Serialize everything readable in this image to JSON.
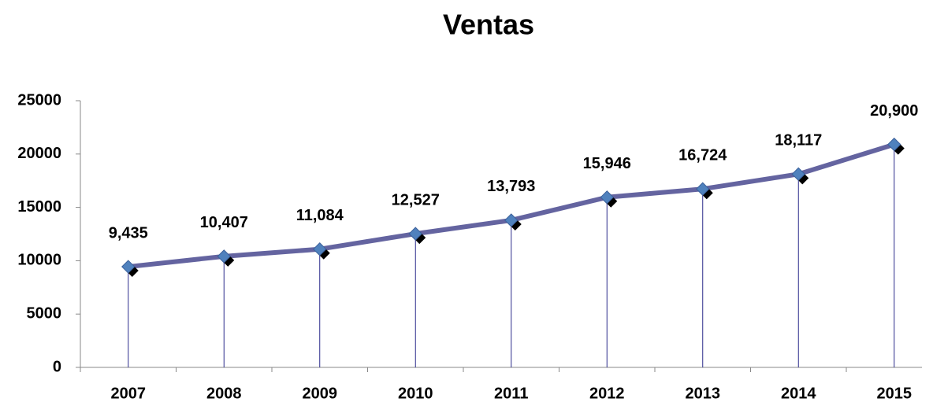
{
  "chart_data": {
    "type": "line",
    "title": "Ventas",
    "categories": [
      "2007",
      "2008",
      "2009",
      "2010",
      "2011",
      "2012",
      "2013",
      "2014",
      "2015"
    ],
    "values": [
      9435,
      10407,
      11084,
      12527,
      13793,
      15946,
      16724,
      18117,
      20900
    ],
    "value_labels": [
      "9,435",
      "10,407",
      "11,084",
      "12,527",
      "13,793",
      "15,946",
      "16,724",
      "18,117",
      "20,900"
    ],
    "color": "#6464a0",
    "marker_color": "#4f81bd",
    "ylim": [
      0,
      25000
    ],
    "yticks": [
      0,
      5000,
      10000,
      15000,
      20000,
      25000
    ],
    "drop_lines": true
  }
}
